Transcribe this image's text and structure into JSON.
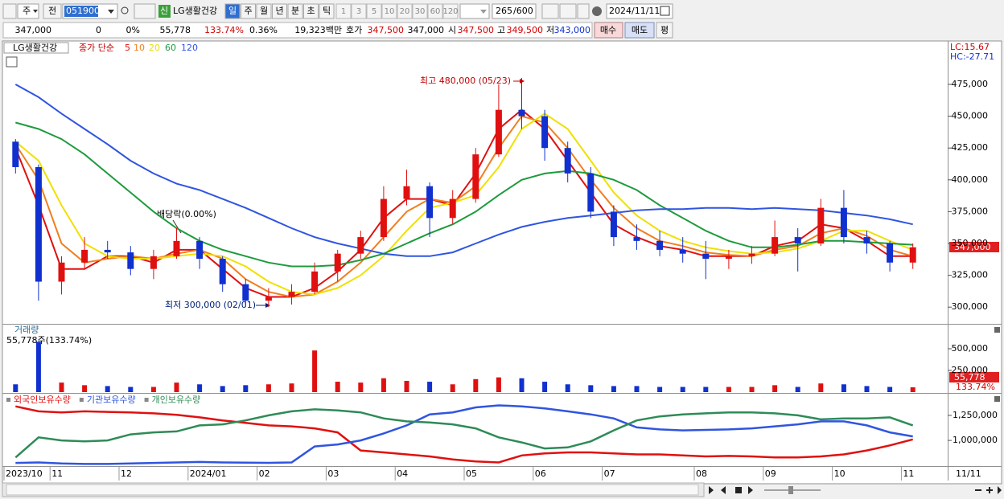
{
  "toolbar": {
    "items": [
      "주",
      "전"
    ],
    "code": "051900",
    "new": "신",
    "name": "LG생활건강",
    "periods": [
      "일",
      "주",
      "월",
      "년",
      "분",
      "초",
      "틱"
    ],
    "intervals": [
      "1",
      "3",
      "5",
      "10",
      "20",
      "30",
      "60",
      "120"
    ],
    "count": "265",
    "count_max": "/600",
    "date": "2024/11/11"
  },
  "quote": {
    "price": "347,000",
    "change": "0",
    "change_pct": "0%",
    "volume": "55,778",
    "volume_ratio": "133.74%",
    "turnover": "0.36%",
    "amount": "19,323백만",
    "ask_label": "호가",
    "ask": "347,500",
    "bid": "347,000",
    "open_label": "시",
    "open": "347,500",
    "high_label": "고",
    "high": "349,500",
    "low_label": "저",
    "low": "343,000",
    "buy": "매수",
    "sell": "매도",
    "avg": "평"
  },
  "chart_data": [
    {
      "type": "candlestick",
      "title": "LG생활건강",
      "ma_label": "종가 단순",
      "lc": "LC:15.67",
      "hc": "HC:-27.71",
      "last_label": "347,000",
      "up_color": "#e01010",
      "down_color": "#1030d0",
      "annotations": [
        "최고 480,000 (05/23)",
        "최저 300,000 (02/01)",
        "배당락(0.00%)"
      ],
      "open": [
        430000,
        410000,
        320000,
        335000,
        345000,
        343000,
        330000,
        340000,
        352000,
        338000,
        318000,
        305000,
        308000,
        312000,
        328000,
        342000,
        355000,
        385000,
        395000,
        370000,
        385000,
        420000,
        455000,
        450000,
        425000,
        405000,
        375000,
        355000,
        352000,
        345000,
        342000,
        338000,
        340000,
        342000,
        355000,
        350000,
        378000,
        355000,
        350000,
        335000
      ],
      "high": [
        432000,
        412000,
        340000,
        355000,
        352000,
        348000,
        345000,
        362000,
        355000,
        340000,
        322000,
        315000,
        318000,
        335000,
        345000,
        360000,
        395000,
        408000,
        398000,
        392000,
        425000,
        475000,
        480000,
        455000,
        430000,
        410000,
        380000,
        365000,
        360000,
        355000,
        352000,
        345000,
        348000,
        368000,
        362000,
        385000,
        392000,
        360000,
        352000,
        350000
      ],
      "low": [
        405000,
        305000,
        310000,
        330000,
        338000,
        325000,
        322000,
        338000,
        330000,
        312000,
        300000,
        300000,
        302000,
        310000,
        320000,
        338000,
        352000,
        380000,
        355000,
        365000,
        382000,
        418000,
        440000,
        415000,
        398000,
        370000,
        348000,
        345000,
        340000,
        335000,
        322000,
        330000,
        334000,
        340000,
        328000,
        348000,
        350000,
        342000,
        328000,
        330000
      ],
      "close": [
        410000,
        320000,
        335000,
        345000,
        343000,
        330000,
        340000,
        352000,
        338000,
        318000,
        305000,
        308000,
        312000,
        328000,
        342000,
        355000,
        385000,
        395000,
        370000,
        385000,
        420000,
        455000,
        450000,
        425000,
        405000,
        375000,
        355000,
        352000,
        345000,
        342000,
        338000,
        340000,
        342000,
        355000,
        350000,
        378000,
        355000,
        350000,
        335000,
        347000
      ],
      "series": [
        {
          "name": "5",
          "color": "#e01010",
          "values": [
            425000,
            380000,
            330000,
            330000,
            340000,
            340000,
            335000,
            345000,
            345000,
            330000,
            315000,
            308000,
            308000,
            315000,
            328000,
            345000,
            370000,
            385000,
            385000,
            380000,
            405000,
            440000,
            455000,
            440000,
            415000,
            390000,
            365000,
            355000,
            348000,
            345000,
            340000,
            340000,
            340000,
            348000,
            352000,
            365000,
            362000,
            352000,
            340000,
            340000
          ]
        },
        {
          "name": "10",
          "color": "#f07f20",
          "values": [
            428000,
            400000,
            350000,
            335000,
            338000,
            340000,
            338000,
            342000,
            345000,
            338000,
            322000,
            312000,
            308000,
            310000,
            320000,
            335000,
            355000,
            375000,
            385000,
            382000,
            395000,
            425000,
            450000,
            445000,
            425000,
            400000,
            378000,
            362000,
            352000,
            348000,
            343000,
            341000,
            340000,
            345000,
            348000,
            358000,
            362000,
            356000,
            345000,
            340000
          ]
        },
        {
          "name": "20",
          "color": "#f0e000",
          "values": [
            430000,
            415000,
            380000,
            350000,
            340000,
            338000,
            338000,
            340000,
            342000,
            340000,
            332000,
            320000,
            312000,
            310000,
            315000,
            325000,
            340000,
            360000,
            378000,
            382000,
            388000,
            410000,
            440000,
            452000,
            440000,
            415000,
            390000,
            372000,
            360000,
            352000,
            347000,
            344000,
            342000,
            343000,
            346000,
            352000,
            360000,
            360000,
            352000,
            345000
          ]
        },
        {
          "name": "60",
          "color": "#1e9b3c",
          "values": [
            445000,
            440000,
            432000,
            420000,
            405000,
            390000,
            375000,
            362000,
            352000,
            345000,
            340000,
            335000,
            332000,
            332000,
            333000,
            337000,
            342000,
            350000,
            358000,
            365000,
            375000,
            388000,
            400000,
            405000,
            407000,
            405000,
            400000,
            392000,
            380000,
            370000,
            360000,
            352000,
            347000,
            347000,
            349000,
            352000,
            352000,
            351000,
            350000,
            349000
          ]
        },
        {
          "name": "120",
          "color": "#2f55e0",
          "values": [
            475000,
            465000,
            452000,
            440000,
            428000,
            415000,
            405000,
            397000,
            392000,
            385000,
            378000,
            370000,
            362000,
            355000,
            350000,
            346000,
            342000,
            340000,
            340000,
            343000,
            350000,
            357000,
            363000,
            367000,
            370000,
            372000,
            374000,
            376000,
            377000,
            377000,
            378000,
            378000,
            377000,
            378000,
            377000,
            376000,
            374000,
            372000,
            369000,
            365000
          ]
        }
      ],
      "ylim": [
        287500,
        499000
      ],
      "yticks": [
        {
          "value": 300000,
          "label": "300,000"
        },
        {
          "value": 325000,
          "label": "325,000"
        },
        {
          "value": 350000,
          "label": "350,000"
        },
        {
          "value": 375000,
          "label": "375,000"
        },
        {
          "value": 400000,
          "label": "400,000"
        },
        {
          "value": 425000,
          "label": "425,000"
        },
        {
          "value": 450000,
          "label": "450,000"
        },
        {
          "value": 475000,
          "label": "475,000"
        }
      ]
    },
    {
      "type": "bar",
      "title": "거래량",
      "value_label": "55,778주(133.74%)",
      "last_label": "55,778",
      "last_ratio": "133.74%",
      "values": [
        90000,
        580000,
        110000,
        80000,
        70000,
        60000,
        60000,
        110000,
        90000,
        70000,
        80000,
        90000,
        100000,
        480000,
        120000,
        110000,
        160000,
        130000,
        120000,
        90000,
        150000,
        170000,
        160000,
        120000,
        90000,
        80000,
        70000,
        70000,
        60000,
        60000,
        60000,
        60000,
        60000,
        80000,
        60000,
        100000,
        90000,
        70000,
        60000,
        55778
      ],
      "ylim": [
        0,
        750000
      ],
      "yticks": [
        {
          "value": 250000,
          "label": "250,000"
        },
        {
          "value": 500000,
          "label": "500,000"
        }
      ]
    },
    {
      "type": "line",
      "categories": [
        "2023/10",
        null,
        "11",
        null,
        null,
        "12",
        null,
        null,
        "2024/01",
        null,
        null,
        "02",
        null,
        null,
        "03",
        null,
        null,
        "04",
        null,
        null,
        "05",
        null,
        null,
        "06",
        null,
        null,
        "07",
        null,
        null,
        null,
        "08",
        null,
        null,
        "09",
        null,
        null,
        "10",
        null,
        null,
        "11"
      ],
      "x_end_label": "11/11",
      "series": [
        {
          "name": "외국인보유수량",
          "color": "#e01010",
          "values": [
            1340000,
            1290000,
            1280000,
            1290000,
            1285000,
            1280000,
            1270000,
            1255000,
            1230000,
            1200000,
            1175000,
            1150000,
            1140000,
            1120000,
            1080000,
            900000,
            880000,
            860000,
            840000,
            810000,
            790000,
            780000,
            850000,
            870000,
            880000,
            880000,
            870000,
            860000,
            860000,
            850000,
            840000,
            845000,
            840000,
            830000,
            830000,
            840000,
            860000,
            900000,
            950000,
            1010000
          ]
        },
        {
          "name": "기관보유수량",
          "color": "#2f55e0",
          "values": [
            775000,
            780000,
            770000,
            765000,
            765000,
            770000,
            775000,
            780000,
            785000,
            780000,
            778000,
            776000,
            780000,
            940000,
            960000,
            1000000,
            1070000,
            1150000,
            1260000,
            1280000,
            1330000,
            1350000,
            1340000,
            1320000,
            1290000,
            1260000,
            1220000,
            1130000,
            1110000,
            1100000,
            1105000,
            1110000,
            1120000,
            1140000,
            1160000,
            1190000,
            1190000,
            1150000,
            1080000,
            1040000
          ]
        },
        {
          "name": "개인보유수량",
          "color": "#2e8b57",
          "values": [
            830000,
            1030000,
            1000000,
            990000,
            1000000,
            1060000,
            1080000,
            1090000,
            1150000,
            1160000,
            1200000,
            1250000,
            1290000,
            1310000,
            1300000,
            1280000,
            1220000,
            1190000,
            1180000,
            1160000,
            1120000,
            1030000,
            980000,
            920000,
            930000,
            990000,
            1100000,
            1200000,
            1240000,
            1260000,
            1270000,
            1280000,
            1280000,
            1270000,
            1250000,
            1210000,
            1220000,
            1220000,
            1230000,
            1150000
          ]
        }
      ],
      "ylim": [
        760000,
        1450000
      ],
      "yticks": [
        {
          "value": 1000000,
          "label": "1,000,000"
        },
        {
          "value": 1250000,
          "label": "1,250,000"
        }
      ]
    }
  ]
}
